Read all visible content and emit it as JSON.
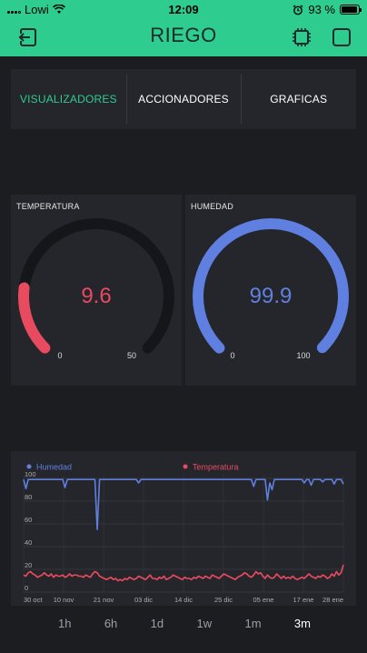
{
  "status_bar": {
    "carrier": "Lowi",
    "time": "12:09",
    "battery": "93 %",
    "battery_level": 0.93
  },
  "header": {
    "title": "RIEGO",
    "left_icon": "exit-icon",
    "right_icons": [
      "chip-icon",
      "square-icon"
    ]
  },
  "tabs": [
    {
      "label": "VISUALIZADORES",
      "active": true
    },
    {
      "label": "ACCIONADORES",
      "active": false
    },
    {
      "label": "GRAFICAS",
      "active": false
    }
  ],
  "gauges": [
    {
      "label": "TEMPERATURA",
      "value": "9.6",
      "min": "0",
      "max": "50",
      "fraction": 0.192,
      "color": "#e84a5f"
    },
    {
      "label": "HUMEDAD",
      "value": "99.9",
      "min": "0",
      "max": "100",
      "fraction": 0.999,
      "color": "#5f80e0"
    }
  ],
  "chart_data": {
    "type": "line",
    "legend_position": "top",
    "grid": true,
    "ylim": [
      0,
      100
    ],
    "y_ticks": [
      "0",
      "20",
      "40",
      "60",
      "80",
      "100"
    ],
    "x_ticks": [
      "30 oct",
      "10 nov",
      "21 nov",
      "03 dic",
      "14 dic",
      "25 dic",
      "05 ene",
      "17 ene",
      "28 ene"
    ],
    "series": [
      {
        "name": "Humedad",
        "color": "#5f80e0",
        "values": [
          99,
          91,
          99,
          99,
          99,
          99,
          99,
          99,
          99,
          99,
          99,
          99,
          99,
          99,
          99,
          99,
          99,
          99,
          92,
          99,
          99,
          99,
          99,
          99,
          99,
          99,
          99,
          99,
          99,
          99,
          99,
          99,
          55,
          99,
          99,
          99,
          99,
          99,
          99,
          99,
          99,
          99,
          99,
          99,
          99,
          99,
          99,
          99,
          99,
          99,
          96,
          99,
          99,
          99,
          99,
          99,
          99,
          99,
          99,
          99,
          99,
          99,
          99,
          99,
          99,
          99,
          99,
          99,
          99,
          99,
          99,
          99,
          99,
          99,
          99,
          99,
          99,
          99,
          99,
          99,
          99,
          99,
          99,
          99,
          99,
          99,
          99,
          99,
          99,
          99,
          99,
          99,
          99,
          99,
          99,
          99,
          99,
          99,
          99,
          99,
          93,
          99,
          99,
          99,
          99,
          99,
          81,
          96,
          90,
          99,
          99,
          99,
          99,
          99,
          99,
          99,
          99,
          99,
          99,
          99,
          99,
          99,
          96,
          99,
          99,
          94,
          99,
          99,
          99,
          99,
          97,
          99,
          99,
          99,
          99,
          95,
          99,
          99,
          99,
          95
        ]
      },
      {
        "name": "Temperatura",
        "color": "#e84a5f",
        "values": [
          15,
          14,
          17,
          18,
          16,
          15,
          13,
          14,
          15,
          17,
          15,
          14,
          16,
          13,
          15,
          14,
          14,
          15,
          13,
          14,
          16,
          14,
          15,
          15,
          14,
          14,
          13,
          15,
          14,
          13,
          16,
          18,
          17,
          14,
          13,
          12,
          11,
          12,
          13,
          11,
          12,
          10,
          11,
          10,
          12,
          11,
          13,
          12,
          11,
          12,
          14,
          13,
          12,
          11,
          13,
          15,
          12,
          12,
          11,
          13,
          12,
          14,
          11,
          12,
          13,
          15,
          14,
          13,
          12,
          11,
          13,
          12,
          12,
          11,
          13,
          12,
          14,
          13,
          12,
          14,
          13,
          12,
          15,
          14,
          13,
          12,
          14,
          16,
          15,
          14,
          13,
          12,
          11,
          13,
          14,
          15,
          17,
          16,
          14,
          13,
          15,
          18,
          16,
          17,
          14,
          12,
          15,
          13,
          12,
          13,
          16,
          14,
          12,
          14,
          12,
          13,
          12,
          14,
          12,
          11,
          12,
          13,
          12,
          14,
          16,
          14,
          13,
          12,
          14,
          13,
          15,
          14,
          12,
          13,
          16,
          14,
          18,
          15,
          17,
          24
        ]
      }
    ]
  },
  "time_ranges": [
    {
      "label": "1h",
      "active": false
    },
    {
      "label": "6h",
      "active": false
    },
    {
      "label": "1d",
      "active": false
    },
    {
      "label": "1w",
      "active": false
    },
    {
      "label": "1m",
      "active": false
    },
    {
      "label": "3m",
      "active": true
    }
  ]
}
